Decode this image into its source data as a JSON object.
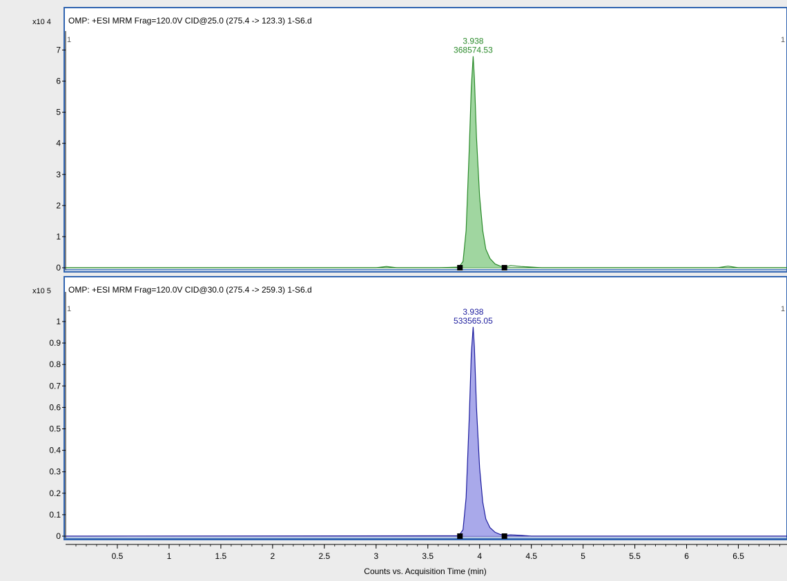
{
  "xlabel": "Counts vs. Acquisition Time (min)",
  "x_range": [
    0.0,
    6.97
  ],
  "x_ticks": [
    "0.5",
    "1",
    "1.5",
    "2",
    "2.5",
    "3",
    "3.5",
    "4",
    "4.5",
    "5",
    "5.5",
    "6",
    "6.5"
  ],
  "colors": {
    "background": "#ececec",
    "panel": "#ffffff",
    "frame": "#2f63b0",
    "axis": "#000000"
  },
  "chart_data": [
    {
      "type": "line",
      "title": "OMP: +ESI MRM Frag=120.0V CID@25.0 (275.4 -> 123.3) 1-S6.d",
      "scale_label": "x10 4",
      "corner_left": "1",
      "corner_right": "1",
      "ylim": [
        0,
        7.5
      ],
      "y_ticks": [
        "0",
        "1",
        "2",
        "3",
        "4",
        "5",
        "6",
        "7"
      ],
      "color": "#2a8a2a",
      "fill": "#8fcf8f",
      "grid": false,
      "peak": {
        "rt": 3.938,
        "height": 6.8,
        "rt_label": "3.938",
        "area_label": "368574.53",
        "integration_start": 3.81,
        "integration_end": 4.24
      },
      "trace": {
        "x": [
          0,
          3.0,
          3.1,
          3.2,
          3.6,
          3.8,
          3.84,
          3.87,
          3.9,
          3.92,
          3.938,
          3.95,
          3.97,
          4.0,
          4.03,
          4.06,
          4.1,
          4.15,
          4.2,
          4.24,
          4.3,
          4.4,
          4.6,
          5.0,
          6.3,
          6.4,
          6.5,
          6.97
        ],
        "y": [
          0,
          0,
          0.04,
          0,
          0,
          0.02,
          0.2,
          1.2,
          3.8,
          5.8,
          6.8,
          6.1,
          4.2,
          2.3,
          1.2,
          0.6,
          0.3,
          0.12,
          0.05,
          0.02,
          0.07,
          0.04,
          0,
          0,
          0,
          0.05,
          0,
          0
        ]
      }
    },
    {
      "type": "line",
      "title": "OMP: +ESI MRM Frag=120.0V CID@30.0 (275.4 -> 259.3) 1-S6.d",
      "scale_label": "x10 5",
      "corner_left": "1",
      "corner_right": "1",
      "ylim": [
        0,
        1.1
      ],
      "y_ticks": [
        "0",
        "0.1",
        "0.2",
        "0.3",
        "0.4",
        "0.5",
        "0.6",
        "0.7",
        "0.8",
        "0.9",
        "1"
      ],
      "color": "#1c1c9e",
      "fill": "#9a9ae6",
      "grid": false,
      "peak": {
        "rt": 3.938,
        "height": 0.975,
        "rt_label": "3.938",
        "area_label": "533565.05",
        "integration_start": 3.81,
        "integration_end": 4.24
      },
      "trace": {
        "x": [
          0,
          3.8,
          3.84,
          3.87,
          3.9,
          3.92,
          3.938,
          3.95,
          3.97,
          4.0,
          4.03,
          4.06,
          4.1,
          4.15,
          4.2,
          4.24,
          4.3,
          4.4,
          4.5,
          6.97
        ],
        "y": [
          0,
          0.002,
          0.03,
          0.18,
          0.55,
          0.85,
          0.975,
          0.88,
          0.6,
          0.32,
          0.16,
          0.08,
          0.04,
          0.018,
          0.008,
          0.004,
          0.006,
          0.004,
          0,
          0
        ]
      }
    }
  ]
}
